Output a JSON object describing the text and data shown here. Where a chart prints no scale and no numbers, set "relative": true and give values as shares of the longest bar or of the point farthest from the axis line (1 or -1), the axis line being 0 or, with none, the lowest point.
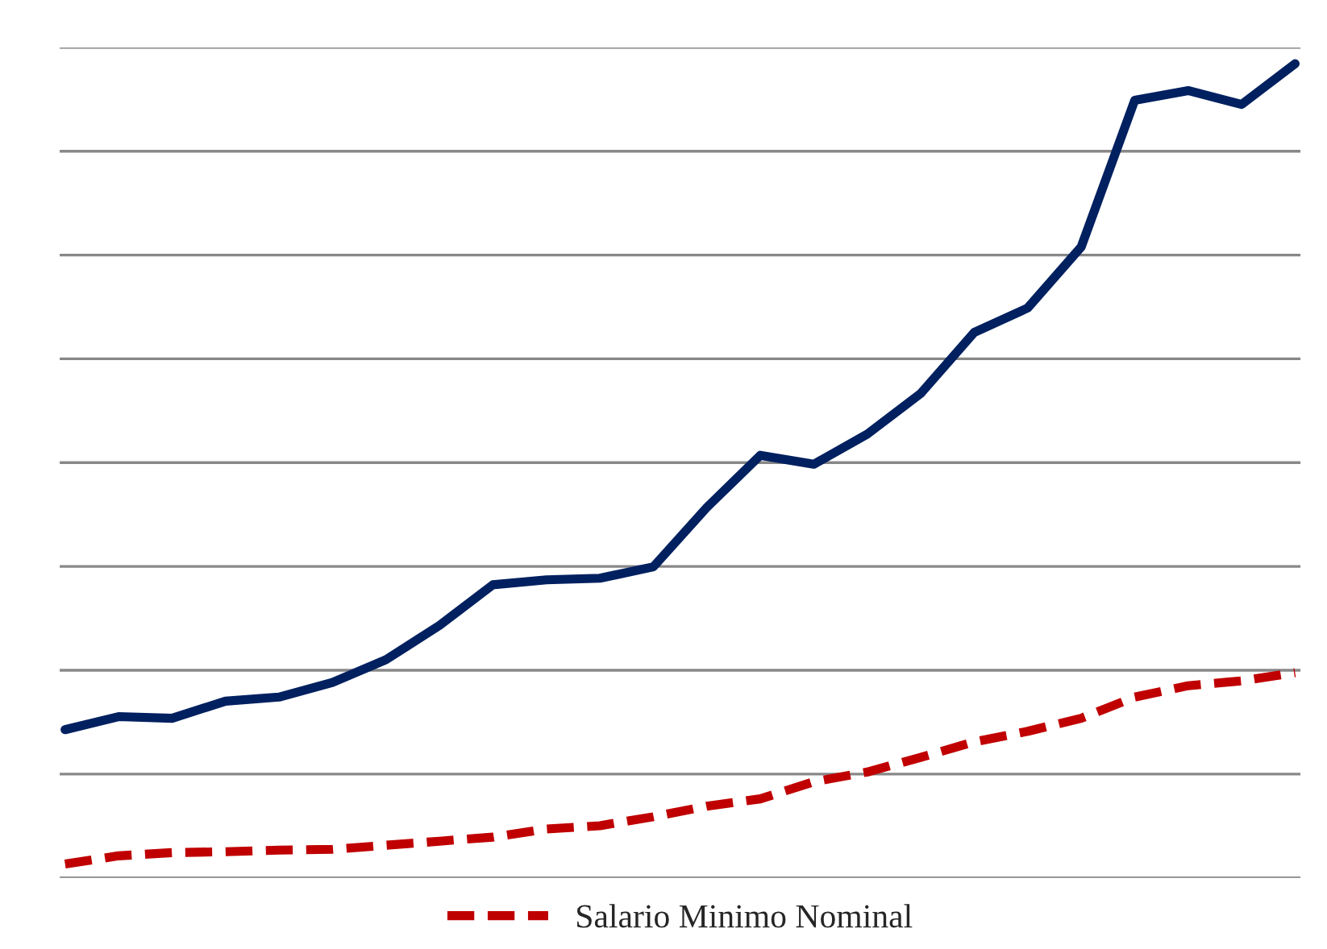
{
  "chart_data": {
    "type": "line",
    "relative": true,
    "grid": "y",
    "legend": "bottom",
    "categories": [
      null,
      null,
      null,
      null,
      null,
      null,
      null,
      null,
      null,
      null,
      null,
      null,
      null,
      null,
      null,
      null,
      null,
      null,
      null,
      null,
      null,
      null,
      null,
      null
    ],
    "series": [
      {
        "color": "#002060",
        "line_style": "solid",
        "values": [
          0.182,
          0.198,
          0.196,
          0.217,
          0.222,
          0.24,
          0.268,
          0.31,
          0.36,
          0.366,
          0.368,
          0.382,
          0.455,
          0.519,
          0.508,
          0.545,
          0.595,
          0.67,
          0.7,
          0.775,
          0.955,
          0.967,
          0.95,
          1.0
        ]
      },
      {
        "name": "Salario Minimo Nominal",
        "color": "#c00000",
        "line_style": "dashed",
        "values": [
          0.017,
          0.027,
          0.031,
          0.032,
          0.034,
          0.035,
          0.04,
          0.045,
          0.05,
          0.06,
          0.064,
          0.075,
          0.088,
          0.097,
          0.118,
          0.13,
          0.148,
          0.167,
          0.18,
          0.196,
          0.222,
          0.236,
          0.242,
          0.252
        ]
      }
    ]
  }
}
